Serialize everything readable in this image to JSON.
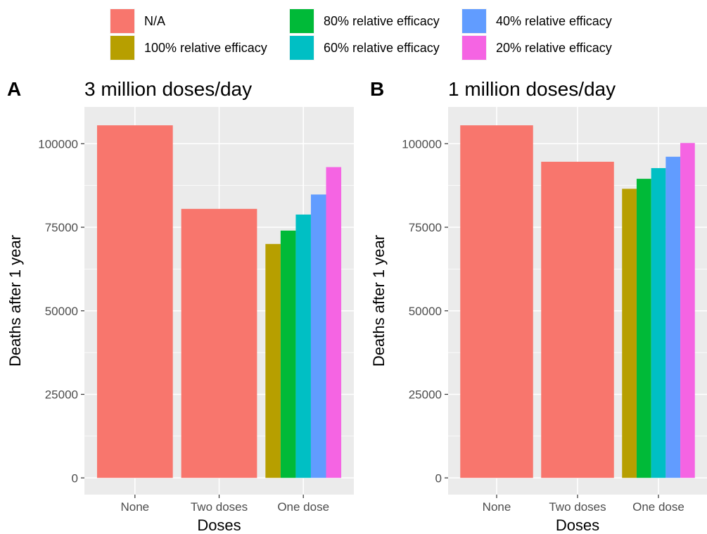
{
  "legend": {
    "items": [
      {
        "label": "N/A",
        "color": "#F8766D"
      },
      {
        "label": "100% relative efficacy",
        "color": "#B79F00"
      },
      {
        "label": "80% relative efficacy",
        "color": "#00BA38"
      },
      {
        "label": "60% relative efficacy",
        "color": "#00BFC4"
      },
      {
        "label": "40% relative efficacy",
        "color": "#619CFF"
      },
      {
        "label": "20% relative efficacy",
        "color": "#F564E3"
      }
    ]
  },
  "chart_data": [
    {
      "type": "bar",
      "tag": "A",
      "title": "3 million doses/day",
      "xlabel": "Doses",
      "ylabel": "Deaths after 1 year",
      "ylim": [
        -5000,
        111000
      ],
      "yticks": [
        0,
        25000,
        50000,
        75000,
        100000
      ],
      "ytick_labels": [
        "0",
        "25000",
        "50000",
        "75000",
        "100000"
      ],
      "categories": [
        "None",
        "Two doses",
        "One dose"
      ],
      "grid": true,
      "legend_position": "top",
      "bars": [
        {
          "category": "None",
          "group": "N/A",
          "value": 105500
        },
        {
          "category": "Two doses",
          "group": "N/A",
          "value": 80500
        },
        {
          "category": "One dose",
          "group": "100% relative efficacy",
          "value": 70000
        },
        {
          "category": "One dose",
          "group": "80% relative efficacy",
          "value": 74000
        },
        {
          "category": "One dose",
          "group": "60% relative efficacy",
          "value": 78800
        },
        {
          "category": "One dose",
          "group": "40% relative efficacy",
          "value": 84800
        },
        {
          "category": "One dose",
          "group": "20% relative efficacy",
          "value": 93000
        }
      ]
    },
    {
      "type": "bar",
      "tag": "B",
      "title": "1 million doses/day",
      "xlabel": "Doses",
      "ylabel": "Deaths after 1 year",
      "ylim": [
        -5000,
        111000
      ],
      "yticks": [
        0,
        25000,
        50000,
        75000,
        100000
      ],
      "ytick_labels": [
        "0",
        "25000",
        "50000",
        "75000",
        "100000"
      ],
      "categories": [
        "None",
        "Two doses",
        "One dose"
      ],
      "grid": true,
      "legend_position": "top",
      "bars": [
        {
          "category": "None",
          "group": "N/A",
          "value": 105500
        },
        {
          "category": "Two doses",
          "group": "N/A",
          "value": 94600
        },
        {
          "category": "One dose",
          "group": "100% relative efficacy",
          "value": 86500
        },
        {
          "category": "One dose",
          "group": "80% relative efficacy",
          "value": 89500
        },
        {
          "category": "One dose",
          "group": "60% relative efficacy",
          "value": 92700
        },
        {
          "category": "One dose",
          "group": "40% relative efficacy",
          "value": 96100
        },
        {
          "category": "One dose",
          "group": "20% relative efficacy",
          "value": 100200
        }
      ]
    }
  ]
}
